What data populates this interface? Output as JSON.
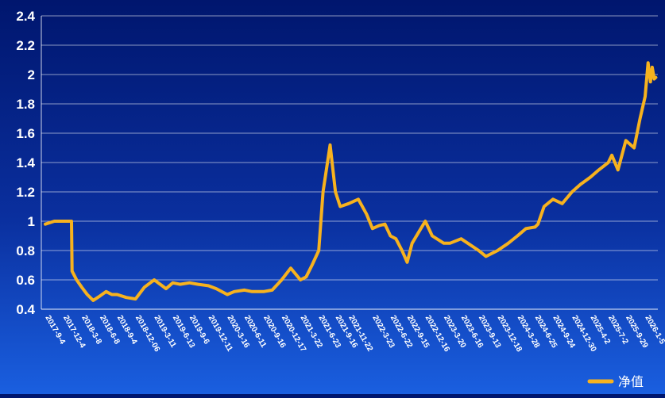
{
  "chart_data": {
    "type": "line",
    "title": "",
    "xlabel": "",
    "ylabel": "",
    "ylim": [
      0.4,
      2.4
    ],
    "yticks": [
      "0.4",
      "0.6",
      "0.8",
      "1",
      "1.2",
      "1.4",
      "1.6",
      "1.8",
      "2",
      "2.2",
      "2.4"
    ],
    "xticks": [
      "2017-9-4",
      "2017-12-4",
      "2018-3-8",
      "2018-6-8",
      "2018-9-4",
      "2018-12-06",
      "2019-3-11",
      "2019-6-13",
      "2019-9-6",
      "2019-12-11",
      "2020-3-16",
      "2020-6-11",
      "2020-9-16",
      "2020-12-17",
      "2021-3-22",
      "2021-6-23",
      "2021-9-16",
      "2021-11-22",
      "2022-3-23",
      "2022-6-22",
      "2022-9-15",
      "2022-12-16",
      "2023-3-20",
      "2023-6-16",
      "2023-9-13",
      "2023-12-18",
      "2024-3-28",
      "2024-6-25",
      "2024-9-24",
      "2024-12-30",
      "2025-4-2",
      "2025-7-2",
      "2025-9-29",
      "2026-1-5"
    ],
    "grid": true,
    "legend_position": "bottom-right",
    "line_color": "#f7b21e",
    "series": [
      {
        "name": "净值",
        "x": [
          "2017-9-4",
          "2017-10-20",
          "2017-12-4",
          "2018-1-15",
          "2018-1-18",
          "2018-2-10",
          "2018-3-8",
          "2018-4-5",
          "2018-5-5",
          "2018-6-8",
          "2018-7-10",
          "2018-8-8",
          "2018-9-4",
          "2018-10-20",
          "2018-12-06",
          "2019-1-20",
          "2019-3-11",
          "2019-4-20",
          "2019-5-10",
          "2019-6-13",
          "2019-7-20",
          "2019-9-6",
          "2019-10-20",
          "2019-12-11",
          "2020-1-20",
          "2020-3-16",
          "2020-4-20",
          "2020-6-11",
          "2020-7-20",
          "2020-9-16",
          "2020-10-30",
          "2020-12-17",
          "2021-2-1",
          "2021-3-22",
          "2021-4-20",
          "2021-5-20",
          "2021-6-23",
          "2021-7-15",
          "2021-8-20",
          "2021-9-16",
          "2021-10-10",
          "2021-11-22",
          "2022-1-10",
          "2022-2-20",
          "2022-3-23",
          "2022-4-25",
          "2022-5-25",
          "2022-6-22",
          "2022-7-20",
          "2022-8-20",
          "2022-9-15",
          "2022-10-10",
          "2022-11-10",
          "2022-12-16",
          "2023-1-20",
          "2023-3-20",
          "2023-4-20",
          "2023-6-16",
          "2023-7-20",
          "2023-9-13",
          "2023-10-20",
          "2023-12-18",
          "2024-2-10",
          "2024-3-28",
          "2024-5-10",
          "2024-6-25",
          "2024-7-10",
          "2024-8-10",
          "2024-9-24",
          "2024-11-10",
          "2024-12-30",
          "2025-2-10",
          "2025-4-2",
          "2025-5-15",
          "2025-7-2",
          "2025-7-20",
          "2025-8-20",
          "2025-9-29",
          "2025-11-10",
          "2025-12-10",
          "2026-1-5",
          "2026-1-20",
          "2026-2-1",
          "2026-2-10",
          "2026-2-20",
          "2026-2-28"
        ],
        "values": [
          0.98,
          1.0,
          1.0,
          1.0,
          0.66,
          0.6,
          0.55,
          0.5,
          0.46,
          0.49,
          0.52,
          0.5,
          0.5,
          0.48,
          0.47,
          0.55,
          0.6,
          0.56,
          0.54,
          0.58,
          0.57,
          0.58,
          0.57,
          0.56,
          0.54,
          0.5,
          0.52,
          0.53,
          0.52,
          0.52,
          0.53,
          0.6,
          0.68,
          0.6,
          0.62,
          0.7,
          0.8,
          1.2,
          1.52,
          1.2,
          1.1,
          1.12,
          1.15,
          1.05,
          0.95,
          0.97,
          0.98,
          0.9,
          0.88,
          0.8,
          0.72,
          0.85,
          0.92,
          1.0,
          0.9,
          0.85,
          0.85,
          0.88,
          0.85,
          0.8,
          0.76,
          0.8,
          0.85,
          0.9,
          0.95,
          0.96,
          0.98,
          1.1,
          1.15,
          1.12,
          1.2,
          1.25,
          1.3,
          1.35,
          1.4,
          1.45,
          1.35,
          1.55,
          1.5,
          1.7,
          1.85,
          2.08,
          1.95,
          2.05,
          1.97,
          1.98
        ]
      }
    ]
  }
}
